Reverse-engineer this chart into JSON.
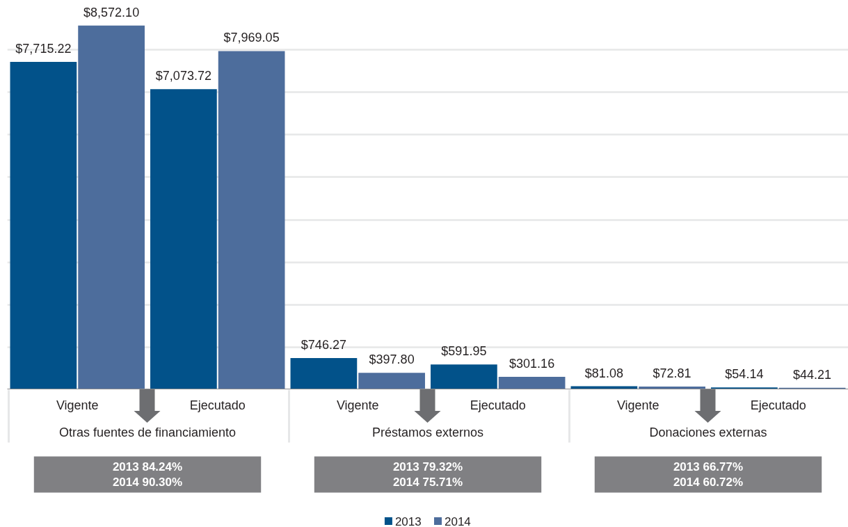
{
  "chart_data": {
    "type": "bar",
    "categories": [
      "Vigente",
      "Ejecutado",
      "Vigente",
      "Ejecutado",
      "Vigente",
      "Ejecutado"
    ],
    "series": [
      {
        "name": "2013",
        "color": "#02528a",
        "values": [
          7715.22,
          7073.72,
          746.27,
          591.95,
          81.08,
          54.14
        ],
        "value_labels": [
          "$7,715.22",
          "$7,073.72",
          "$746.27",
          "$591.95",
          "$81.08",
          "$54.14"
        ]
      },
      {
        "name": "2014",
        "color": "#4d6d9c",
        "values": [
          8572.1,
          7969.05,
          397.8,
          301.16,
          72.81,
          44.21
        ],
        "value_labels": [
          "$8,572.10",
          "$7,969.05",
          "$397.80",
          "$301.16",
          "$72.81",
          "$44.21"
        ]
      }
    ],
    "yticks": [
      {
        "value": 1000,
        "label": null
      },
      {
        "value": 2000,
        "label": null
      },
      {
        "value": 3000,
        "label": null
      },
      {
        "value": 4000,
        "label": null
      },
      {
        "value": 5000,
        "label": null
      },
      {
        "value": 6000,
        "label": null
      },
      {
        "value": 7000,
        "label": null
      },
      {
        "value": 8000,
        "label": null
      }
    ],
    "tick_labels": "x",
    "grid": "y",
    "legend": "bottom",
    "annotations": [
      "Otras fuentes de financiamiento",
      "Préstamos externos",
      "Donaciones externas",
      "2013 84.24%\n2014 90.30%",
      "2013 79.32%\n2014 75.71%",
      "2013 66.77%\n2014 60.72%"
    ]
  }
}
